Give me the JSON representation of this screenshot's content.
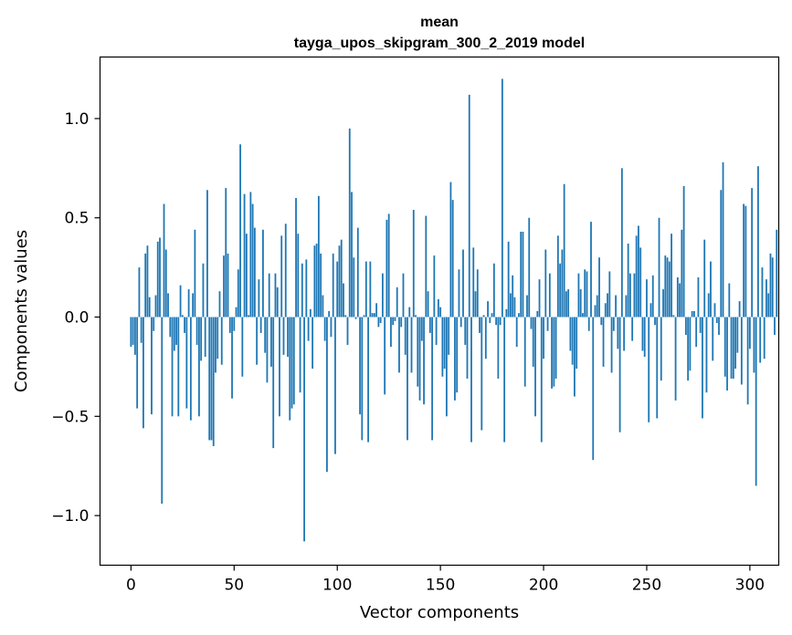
{
  "chart_data": {
    "type": "bar",
    "title": "mean",
    "subtitle": "tayga_upos_skipgram_300_2_2019 model",
    "xlabel": "Vector components",
    "ylabel": "Components values",
    "xlim": [
      -15,
      314
    ],
    "ylim": [
      -1.25,
      1.31
    ],
    "xticks": [
      0,
      50,
      100,
      150,
      200,
      250,
      300
    ],
    "xtick_labels": [
      "0",
      "50",
      "100",
      "150",
      "200",
      "250",
      "300"
    ],
    "yticks": [
      -1.0,
      -0.5,
      0.0,
      0.5,
      1.0
    ],
    "ytick_labels": [
      "−1.0",
      "−0.5",
      "0.0",
      "0.5",
      "1.0"
    ],
    "grid": false,
    "bar_color": "#1f77b4",
    "values": [
      -0.15,
      -0.14,
      -0.19,
      -0.46,
      0.25,
      -0.13,
      -0.56,
      0.32,
      0.36,
      0.1,
      -0.49,
      -0.07,
      0.11,
      0.38,
      0.4,
      -0.94,
      0.57,
      0.34,
      0.12,
      -0.1,
      -0.5,
      -0.17,
      -0.14,
      -0.5,
      0.16,
      0.01,
      -0.08,
      -0.46,
      0.14,
      -0.52,
      0.12,
      0.44,
      -0.14,
      -0.5,
      -0.22,
      0.27,
      -0.2,
      0.64,
      -0.62,
      -0.62,
      -0.65,
      -0.28,
      -0.21,
      0.13,
      -0.24,
      0.31,
      0.65,
      0.32,
      -0.08,
      -0.41,
      -0.07,
      0.05,
      0.24,
      0.87,
      -0.3,
      0.62,
      0.42,
      0.01,
      0.63,
      0.57,
      0.45,
      -0.24,
      0.19,
      -0.08,
      0.44,
      -0.18,
      -0.33,
      0.22,
      -0.25,
      -0.66,
      0.22,
      0.15,
      -0.5,
      0.41,
      -0.19,
      0.47,
      -0.2,
      -0.52,
      -0.46,
      -0.44,
      0.6,
      0.42,
      -0.38,
      0.27,
      -1.13,
      0.29,
      -0.12,
      0.04,
      -0.26,
      0.36,
      0.37,
      0.61,
      0.32,
      0.11,
      -0.12,
      -0.78,
      0.03,
      -0.1,
      0.32,
      -0.69,
      0.28,
      0.36,
      0.39,
      0.17,
      0.01,
      -0.14,
      0.95,
      0.63,
      0.3,
      -0.01,
      0.45,
      -0.49,
      -0.62,
      0.01,
      0.28,
      -0.63,
      0.28,
      0.02,
      0.02,
      0.07,
      -0.05,
      -0.03,
      0.22,
      -0.39,
      0.49,
      0.52,
      -0.15,
      -0.04,
      -0.02,
      0.15,
      -0.28,
      -0.05,
      0.22,
      -0.19,
      -0.62,
      0.05,
      -0.28,
      0.54,
      0.01,
      -0.35,
      -0.42,
      -0.12,
      -0.44,
      0.51,
      0.13,
      -0.08,
      -0.62,
      0.31,
      -0.14,
      0.09,
      0.05,
      -0.3,
      -0.26,
      -0.5,
      -0.19,
      0.68,
      0.59,
      -0.42,
      -0.38,
      0.24,
      -0.05,
      0.34,
      -0.14,
      -0.31,
      1.12,
      -0.63,
      0.35,
      0.13,
      0.24,
      -0.08,
      -0.57,
      0.01,
      -0.21,
      0.08,
      -0.03,
      0.02,
      0.27,
      -0.04,
      -0.31,
      -0.04,
      1.2,
      -0.63,
      0.04,
      0.38,
      0.12,
      0.21,
      0.1,
      -0.15,
      0.02,
      0.43,
      0.43,
      -0.35,
      0.11,
      0.5,
      -0.06,
      -0.25,
      -0.5,
      0.03,
      0.19,
      -0.63,
      -0.21,
      0.34,
      -0.07,
      0.22,
      -0.36,
      -0.35,
      -0.31,
      0.41,
      0.27,
      0.34,
      0.67,
      0.13,
      0.14,
      -0.17,
      -0.24,
      -0.4,
      -0.26,
      0.22,
      0.14,
      0.02,
      0.24,
      0.23,
      -0.07,
      0.48,
      -0.72,
      0.06,
      0.11,
      0.3,
      -0.04,
      -0.25,
      0.07,
      0.12,
      0.23,
      -0.28,
      -0.07,
      0.11,
      -0.16,
      -0.58,
      0.75,
      -0.17,
      0.11,
      0.37,
      0.22,
      -0.12,
      0.22,
      0.41,
      0.46,
      0.35,
      -0.17,
      -0.2,
      0.19,
      -0.53,
      0.07,
      0.21,
      -0.04,
      -0.51,
      0.5,
      -0.32,
      0.14,
      0.31,
      0.3,
      0.28,
      0.42,
      0.01,
      -0.42,
      0.2,
      0.17,
      0.44,
      0.66,
      -0.09,
      -0.32,
      -0.27,
      0.03,
      0.03,
      -0.15,
      0.2,
      -0.08,
      -0.51,
      0.39,
      -0.38,
      0.12,
      0.28,
      -0.22,
      0.07,
      -0.03,
      -0.09,
      0.64,
      0.78,
      -0.3,
      -0.37,
      0.17,
      -0.31,
      -0.31,
      -0.26,
      -0.18,
      0.08,
      -0.34,
      0.57,
      0.56,
      -0.44,
      -0.16,
      0.65,
      -0.28,
      -0.85,
      0.76,
      -0.23,
      0.25,
      -0.21,
      0.19,
      0.12,
      0.32,
      0.3,
      -0.09,
      0.44
    ]
  }
}
